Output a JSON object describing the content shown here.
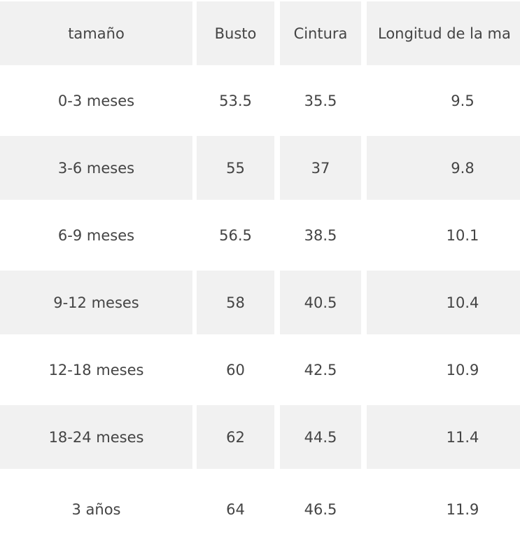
{
  "table": {
    "header": [
      "tamaño",
      "Busto",
      "Cintura",
      "Longitud de la ma"
    ],
    "rows": [
      [
        "0-3 meses",
        "53.5",
        "35.5",
        "9.5"
      ],
      [
        "3-6 meses",
        "55",
        "37",
        "9.8"
      ],
      [
        "6-9 meses",
        "56.5",
        "38.5",
        "10.1"
      ],
      [
        "9-12 meses",
        "58",
        "40.5",
        "10.4"
      ],
      [
        "12-18 meses",
        "60",
        "42.5",
        "10.9"
      ],
      [
        "18-24 meses",
        "62",
        "44.5",
        "11.4"
      ],
      [
        "3 años",
        "64",
        "46.5",
        "11.9"
      ]
    ]
  }
}
